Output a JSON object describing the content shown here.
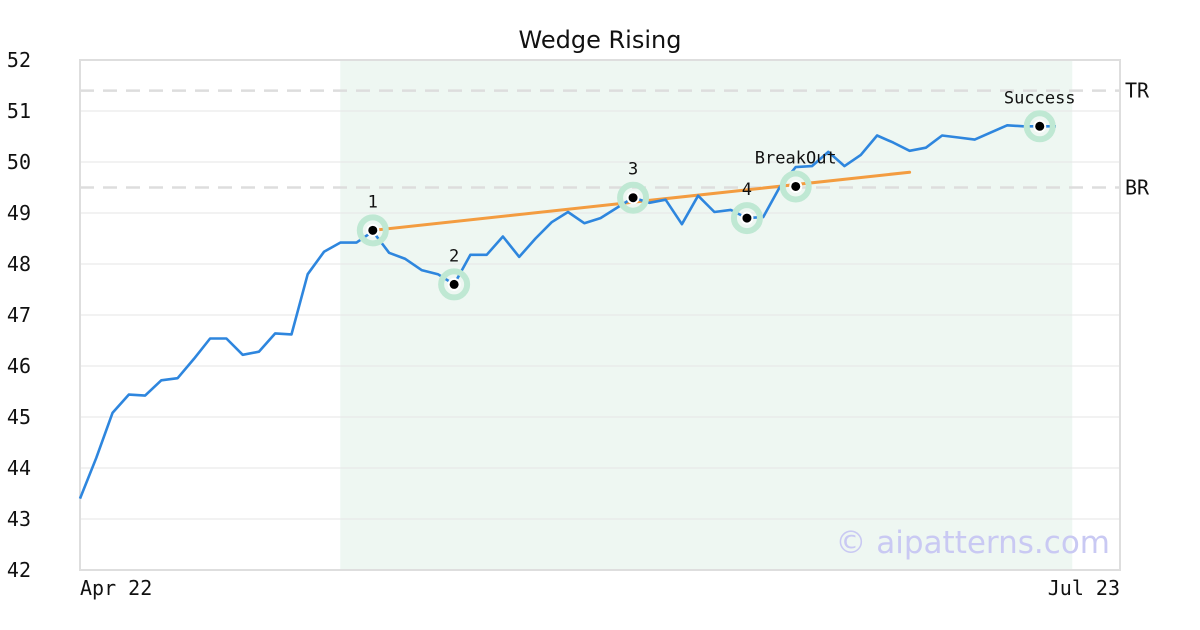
{
  "chart_data": {
    "type": "line",
    "title": "Wedge Rising",
    "xlabel": "",
    "ylabel": "",
    "ylim": [
      42,
      52
    ],
    "yticks": [
      42,
      43,
      44,
      45,
      46,
      47,
      48,
      49,
      50,
      51,
      52
    ],
    "x_start_label": "Apr 22",
    "x_end_label": "Jul 23",
    "grid": "horizontal",
    "colors": {
      "price": "#2e86de",
      "trendline": "#f39c40",
      "highlight": "#eef7f2",
      "marker_halo": "#bfe8d3",
      "level_line": "#dddddd",
      "watermark": "#c9c9f3"
    },
    "series": [
      {
        "values": [
          43.4,
          44.2,
          45.08,
          45.44,
          45.42,
          45.72,
          45.76,
          46.14,
          46.54,
          46.54,
          46.22,
          46.28,
          46.64,
          46.62,
          47.8,
          48.24,
          48.42,
          48.42,
          48.64,
          48.22,
          48.1,
          47.88,
          47.8,
          47.6,
          48.18,
          48.18,
          48.54,
          48.14,
          48.5,
          48.82,
          49.02,
          48.8,
          48.9,
          49.1,
          49.3,
          49.2,
          49.26,
          48.78,
          49.34,
          49.02,
          49.06,
          48.9,
          48.92,
          49.5,
          49.9,
          49.92,
          50.2,
          49.92,
          50.14,
          50.52,
          50.38,
          50.22,
          50.28,
          50.52,
          50.48,
          50.44,
          50.58,
          50.72,
          50.7,
          50.7,
          50.7
        ]
      }
    ],
    "highlight_range": [
      16,
      61
    ],
    "trendline": {
      "from": [
        18,
        48.66
      ],
      "to": [
        51,
        49.8
      ]
    },
    "levels": [
      {
        "label": "TR",
        "value": 51.4
      },
      {
        "label": "BR",
        "value": 49.5
      }
    ],
    "points": [
      {
        "label": "1",
        "x": 18,
        "y": 48.66
      },
      {
        "label": "2",
        "x": 23,
        "y": 47.6
      },
      {
        "label": "3",
        "x": 34,
        "y": 49.3
      },
      {
        "label": "4",
        "x": 41,
        "y": 48.9
      },
      {
        "label": "BreakOut",
        "x": 44,
        "y": 49.52
      },
      {
        "label": "Success",
        "x": 59,
        "y": 50.7
      }
    ],
    "watermark": "© aipatterns.com"
  }
}
